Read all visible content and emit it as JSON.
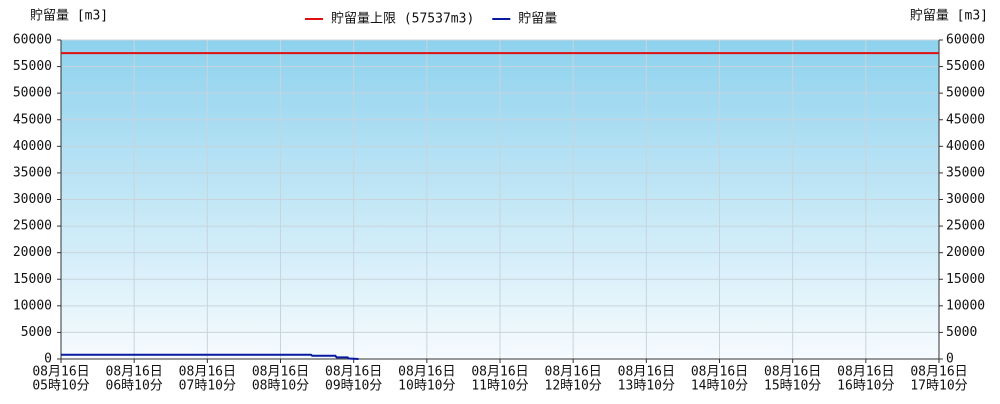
{
  "chart_data": {
    "type": "line",
    "y_label": "貯留量 [m3]",
    "y2_label": "貯留量 [m3]",
    "ylim": [
      0,
      60000
    ],
    "yticks": [
      0,
      5000,
      10000,
      15000,
      20000,
      25000,
      30000,
      35000,
      40000,
      45000,
      50000,
      55000,
      60000
    ],
    "y2lim": [
      0,
      60000
    ],
    "y2ticks": [
      0,
      5000,
      10000,
      15000,
      20000,
      25000,
      30000,
      35000,
      40000,
      45000,
      50000,
      55000,
      60000
    ],
    "xlim": [
      "05:10",
      "17:10"
    ],
    "xticks": [
      {
        "value": "05:10",
        "label": [
          "08月16日",
          "05時10分"
        ]
      },
      {
        "value": "06:10",
        "label": [
          "08月16日",
          "06時10分"
        ]
      },
      {
        "value": "07:10",
        "label": [
          "08月16日",
          "07時10分"
        ]
      },
      {
        "value": "08:10",
        "label": [
          "08月16日",
          "08時10分"
        ]
      },
      {
        "value": "09:10",
        "label": [
          "08月16日",
          "09時10分"
        ]
      },
      {
        "value": "10:10",
        "label": [
          "08月16日",
          "10時10分"
        ]
      },
      {
        "value": "11:10",
        "label": [
          "08月16日",
          "11時10分"
        ]
      },
      {
        "value": "12:10",
        "label": [
          "08月16日",
          "12時10分"
        ]
      },
      {
        "value": "13:10",
        "label": [
          "08月16日",
          "13時10分"
        ]
      },
      {
        "value": "14:10",
        "label": [
          "08月16日",
          "14時10分"
        ]
      },
      {
        "value": "15:10",
        "label": [
          "08月16日",
          "15時10分"
        ]
      },
      {
        "value": "16:10",
        "label": [
          "08月16日",
          "16時10分"
        ]
      },
      {
        "value": "17:10",
        "label": [
          "08月16日",
          "17時10分"
        ]
      }
    ],
    "grid": true,
    "limit": {
      "name": "貯留量上限 (57537m3)",
      "value": 57537,
      "color": "#e01010"
    },
    "x": [
      "05:10",
      "06:10",
      "07:10",
      "08:10",
      "08:35",
      "08:36",
      "08:55",
      "08:56",
      "09:05",
      "09:06",
      "09:14"
    ],
    "series": [
      {
        "name": "貯留量",
        "color": "#0a1aa0",
        "values": [
          800,
          800,
          800,
          800,
          800,
          600,
          600,
          300,
          300,
          100,
          0
        ]
      }
    ]
  }
}
